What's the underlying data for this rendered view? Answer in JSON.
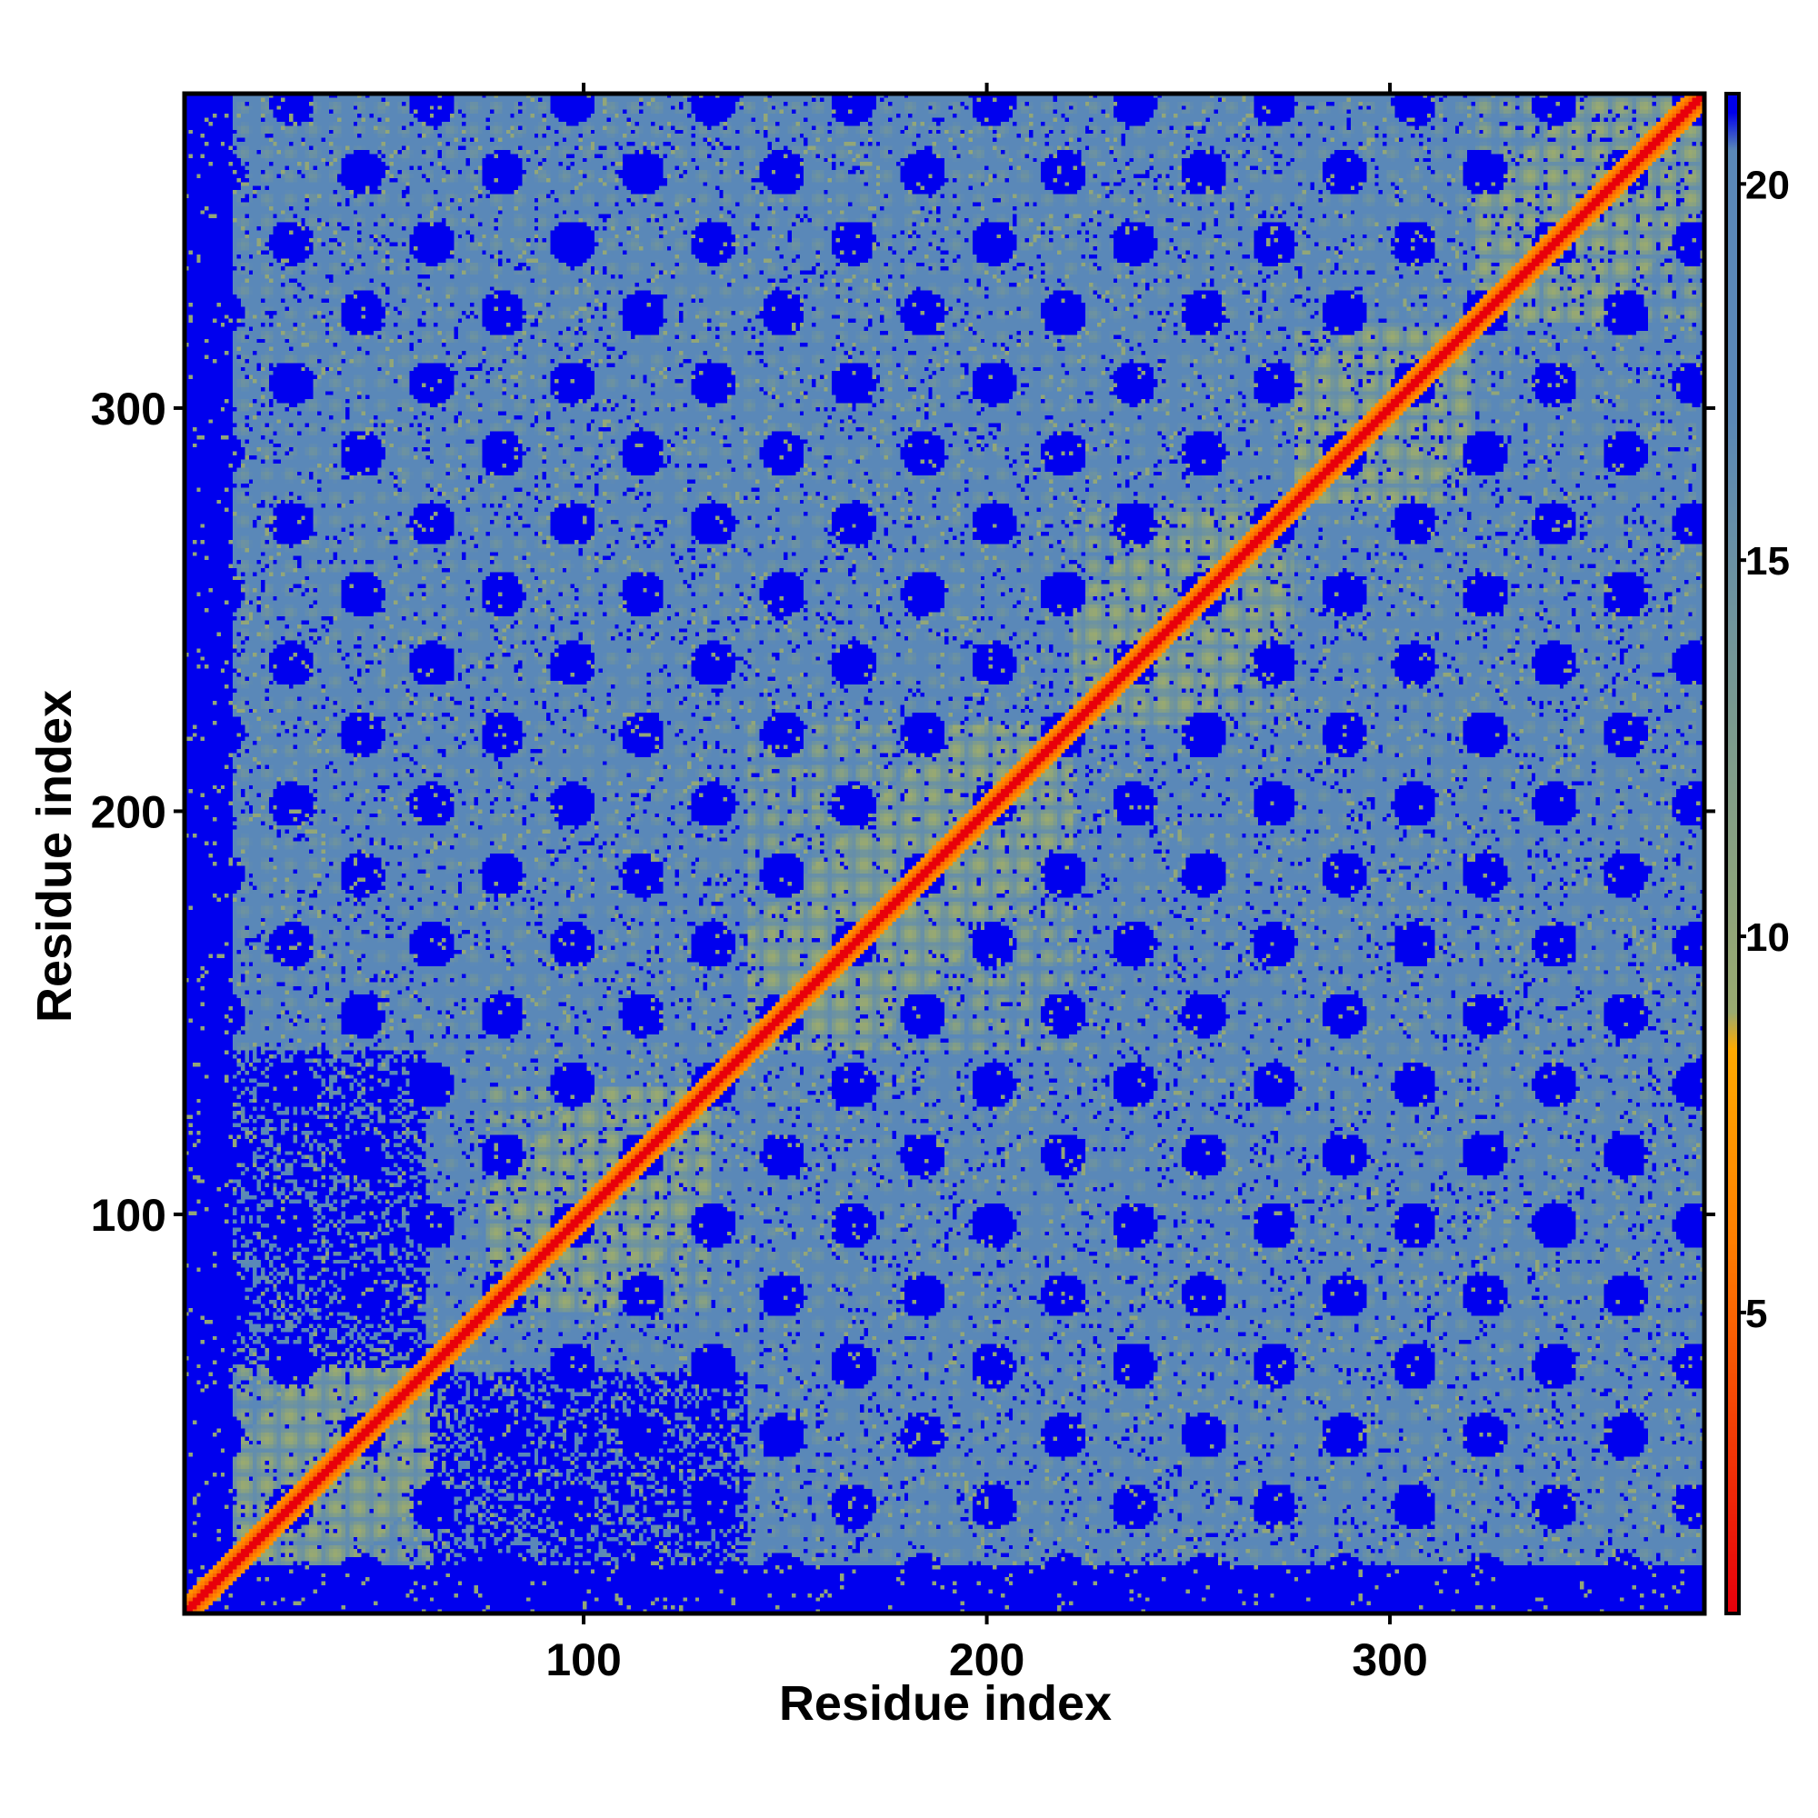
{
  "chart_data": {
    "type": "heatmap",
    "title": "",
    "xlabel": "Residue index",
    "ylabel": "Residue index",
    "n_residues": 378,
    "xlim": [
      1,
      378
    ],
    "ylim": [
      1,
      378
    ],
    "x_ticks": [
      100,
      200,
      300
    ],
    "y_ticks": [
      100,
      200,
      300
    ],
    "x_tick_labels": [
      "100",
      "200",
      "300"
    ],
    "y_tick_labels": [
      "100",
      "200",
      "300"
    ],
    "colorbar": {
      "range": [
        1,
        21.2
      ],
      "ticks": [
        5,
        10,
        15,
        20
      ],
      "tick_labels": [
        "5",
        "10",
        "15",
        "20"
      ],
      "stops": [
        {
          "value": 1,
          "color": "#e8000b"
        },
        {
          "value": 6,
          "color": "#ff8000"
        },
        {
          "value": 8.5,
          "color": "#ffaa00"
        },
        {
          "value": 9,
          "color": "#9aaa70"
        },
        {
          "value": 13,
          "color": "#7a9a90"
        },
        {
          "value": 17,
          "color": "#5a88b8"
        },
        {
          "value": 20.5,
          "color": "#5a88b8"
        },
        {
          "value": 21,
          "color": "#0000ee"
        }
      ]
    },
    "domains": [
      {
        "start": 1,
        "end": 65,
        "center": 35
      },
      {
        "start": 75,
        "end": 130,
        "center": 105
      },
      {
        "start": 140,
        "end": 220,
        "center": 180
      },
      {
        "start": 215,
        "end": 275,
        "center": 245
      },
      {
        "start": 270,
        "end": 320,
        "center": 295
      },
      {
        "start": 315,
        "end": 378,
        "center": 350
      }
    ],
    "colors": {
      "background_far": "#0000ee",
      "mid_distance": "#5a88b8",
      "contact": "#e8000b",
      "near_contact": "#ff8000"
    }
  }
}
